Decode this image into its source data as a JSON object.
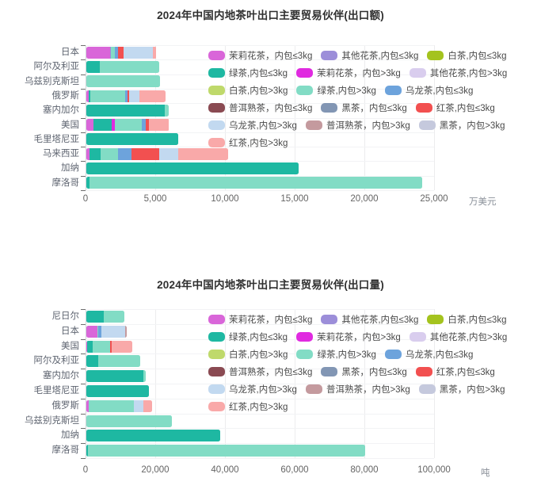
{
  "page": {
    "background": "#ffffff"
  },
  "chart_data": [
    {
      "type": "bar",
      "orientation": "horizontal",
      "stacked": true,
      "title": "2024年中国内地茶叶出口主要贸易伙伴(出口额)",
      "unit": "万美元",
      "xlabel": "万美元",
      "ylabel": "",
      "xlim": [
        0,
        25000
      ],
      "xticks": [
        0,
        5000,
        10000,
        15000,
        20000,
        25000
      ],
      "xtick_labels": [
        "0",
        "5,000",
        "10,000",
        "15,000",
        "20,000",
        "25,000"
      ],
      "grid": true,
      "legend_position": "inside-top-right",
      "categories": [
        "日本",
        "阿尔及利亚",
        "乌兹别克斯坦",
        "俄罗斯",
        "塞内加尔",
        "美国",
        "毛里塔尼亚",
        "马来西亚",
        "加纳",
        "摩洛哥"
      ],
      "series": [
        {
          "name": "茉莉花茶，内包≤3kg",
          "color": "#d966d9",
          "values": [
            1700,
            0,
            0,
            150,
            0,
            500,
            0,
            200,
            0,
            0
          ]
        },
        {
          "name": "其他花茶,内包≤3kg",
          "color": "#9c8ed9",
          "values": [
            80,
            0,
            0,
            0,
            0,
            0,
            0,
            0,
            0,
            0
          ]
        },
        {
          "name": "白茶,内包≤3kg",
          "color": "#a4c31e",
          "values": [
            0,
            0,
            0,
            0,
            0,
            0,
            0,
            0,
            0,
            0
          ]
        },
        {
          "name": "绿茶,内包≤3kg",
          "color": "#1eb8a2",
          "values": [
            0,
            950,
            0,
            150,
            5650,
            1330,
            6600,
            850,
            15200,
            250
          ]
        },
        {
          "name": "茉莉花茶，内包>3kg",
          "color": "#e02ae0",
          "values": [
            0,
            0,
            0,
            0,
            0,
            230,
            0,
            0,
            0,
            0
          ]
        },
        {
          "name": "其他花茶,内包>3kg",
          "color": "#d9cdee",
          "values": [
            0,
            0,
            0,
            0,
            0,
            0,
            0,
            0,
            0,
            0
          ]
        },
        {
          "name": "白茶,内包>3kg",
          "color": "#bfd96b",
          "values": [
            0,
            0,
            0,
            0,
            0,
            0,
            0,
            0,
            0,
            0
          ]
        },
        {
          "name": "绿茶,内包>3kg",
          "color": "#82dcc5",
          "values": [
            250,
            4250,
            5300,
            2500,
            250,
            1930,
            0,
            1230,
            0,
            23850
          ]
        },
        {
          "name": "乌龙茶,内包≤3kg",
          "color": "#6da3dc",
          "values": [
            250,
            0,
            0,
            150,
            0,
            250,
            0,
            985,
            0,
            0
          ]
        },
        {
          "name": "普洱熟茶，内包≤3kg",
          "color": "#8a4a52",
          "values": [
            0,
            0,
            0,
            0,
            0,
            0,
            0,
            0,
            0,
            0
          ]
        },
        {
          "name": "黑茶，内包≤3kg",
          "color": "#8296b4",
          "values": [
            0,
            0,
            0,
            0,
            0,
            0,
            0,
            0,
            0,
            0
          ]
        },
        {
          "name": "红茶,内包≤3kg",
          "color": "#f25050",
          "values": [
            370,
            0,
            0,
            100,
            0,
            250,
            0,
            1950,
            0,
            0
          ]
        },
        {
          "name": "乌龙茶,内包>3kg",
          "color": "#c2d9f0",
          "values": [
            2150,
            0,
            0,
            750,
            0,
            0,
            0,
            1380,
            0,
            0
          ]
        },
        {
          "name": "普洱熟茶，内包>3kg",
          "color": "#c49a9e",
          "values": [
            0,
            0,
            0,
            0,
            0,
            0,
            0,
            0,
            0,
            0
          ]
        },
        {
          "name": "黑茶，内包>3kg",
          "color": "#c5c9dd",
          "values": [
            0,
            0,
            0,
            0,
            0,
            0,
            0,
            0,
            0,
            0
          ]
        },
        {
          "name": "红茶,内包>3kg",
          "color": "#f9a9a9",
          "values": [
            230,
            0,
            0,
            1900,
            0,
            1450,
            0,
            3580,
            0,
            0
          ]
        }
      ]
    },
    {
      "type": "bar",
      "orientation": "horizontal",
      "stacked": true,
      "title": "2024年中国内地茶叶出口主要贸易伙伴(出口量)",
      "unit": "吨",
      "xlabel": "吨",
      "ylabel": "",
      "xlim": [
        0,
        100000
      ],
      "xticks": [
        0,
        20000,
        40000,
        60000,
        80000,
        100000
      ],
      "xtick_labels": [
        "0",
        "20,000",
        "40,000",
        "60,000",
        "80,000",
        "100,000"
      ],
      "grid": true,
      "legend_position": "inside-top-right",
      "categories": [
        "尼日尔",
        "日本",
        "美国",
        "阿尔及利亚",
        "塞内加尔",
        "毛里塔尼亚",
        "俄罗斯",
        "乌兹别克斯坦",
        "加纳",
        "摩洛哥"
      ],
      "series": [
        {
          "name": "茉莉花茶，内包≤3kg",
          "color": "#d966d9",
          "values": [
            0,
            3100,
            300,
            0,
            0,
            0,
            700,
            0,
            0,
            0
          ]
        },
        {
          "name": "其他花茶,内包≤3kg",
          "color": "#9c8ed9",
          "values": [
            0,
            0,
            0,
            0,
            0,
            0,
            0,
            0,
            0,
            0
          ]
        },
        {
          "name": "白茶,内包≤3kg",
          "color": "#a4c31e",
          "values": [
            0,
            0,
            0,
            0,
            0,
            0,
            0,
            0,
            0,
            0
          ]
        },
        {
          "name": "绿茶,内包≤3kg",
          "color": "#1eb8a2",
          "values": [
            5000,
            0,
            1500,
            3500,
            16300,
            17900,
            0,
            0,
            38300,
            500
          ]
        },
        {
          "name": "茉莉花茶，内包>3kg",
          "color": "#e02ae0",
          "values": [
            0,
            0,
            0,
            0,
            0,
            0,
            0,
            0,
            0,
            0
          ]
        },
        {
          "name": "其他花茶,内包>3kg",
          "color": "#d9cdee",
          "values": [
            0,
            0,
            0,
            0,
            0,
            0,
            0,
            0,
            0,
            0
          ]
        },
        {
          "name": "白茶,内包>3kg",
          "color": "#bfd96b",
          "values": [
            0,
            0,
            0,
            0,
            0,
            0,
            0,
            0,
            0,
            0
          ]
        },
        {
          "name": "绿茶,内包>3kg",
          "color": "#82dcc5",
          "values": [
            6000,
            400,
            5000,
            11900,
            700,
            0,
            13000,
            24600,
            0,
            79500
          ]
        },
        {
          "name": "乌龙茶,内包≤3kg",
          "color": "#6da3dc",
          "values": [
            0,
            900,
            0,
            0,
            0,
            0,
            0,
            0,
            0,
            0
          ]
        },
        {
          "name": "普洱熟茶，内包≤3kg",
          "color": "#8a4a52",
          "values": [
            0,
            0,
            0,
            0,
            0,
            0,
            0,
            0,
            0,
            0
          ]
        },
        {
          "name": "黑茶，内包≤3kg",
          "color": "#8296b4",
          "values": [
            0,
            0,
            0,
            0,
            0,
            0,
            0,
            0,
            0,
            0
          ]
        },
        {
          "name": "红茶,内包≤3kg",
          "color": "#f25050",
          "values": [
            0,
            0,
            500,
            0,
            0,
            0,
            0,
            0,
            0,
            0
          ]
        },
        {
          "name": "乌龙茶,内包>3kg",
          "color": "#c2d9f0",
          "values": [
            0,
            6800,
            0,
            0,
            0,
            0,
            2650,
            0,
            0,
            0
          ]
        },
        {
          "name": "普洱熟茶，内包>3kg",
          "color": "#c49a9e",
          "values": [
            0,
            300,
            0,
            0,
            0,
            0,
            0,
            0,
            0,
            0
          ]
        },
        {
          "name": "黑茶，内包>3kg",
          "color": "#c5c9dd",
          "values": [
            0,
            0,
            0,
            0,
            0,
            0,
            0,
            0,
            0,
            0
          ]
        },
        {
          "name": "红茶,内包>3kg",
          "color": "#f9a9a9",
          "values": [
            0,
            200,
            5900,
            0,
            0,
            0,
            2500,
            0,
            0,
            0
          ]
        }
      ]
    }
  ],
  "legend_rows": [
    [
      0,
      1,
      2
    ],
    [
      3,
      4,
      5
    ],
    [
      6,
      7,
      8
    ],
    [
      9,
      10,
      11
    ],
    [
      12,
      13,
      14
    ],
    [
      15
    ]
  ]
}
